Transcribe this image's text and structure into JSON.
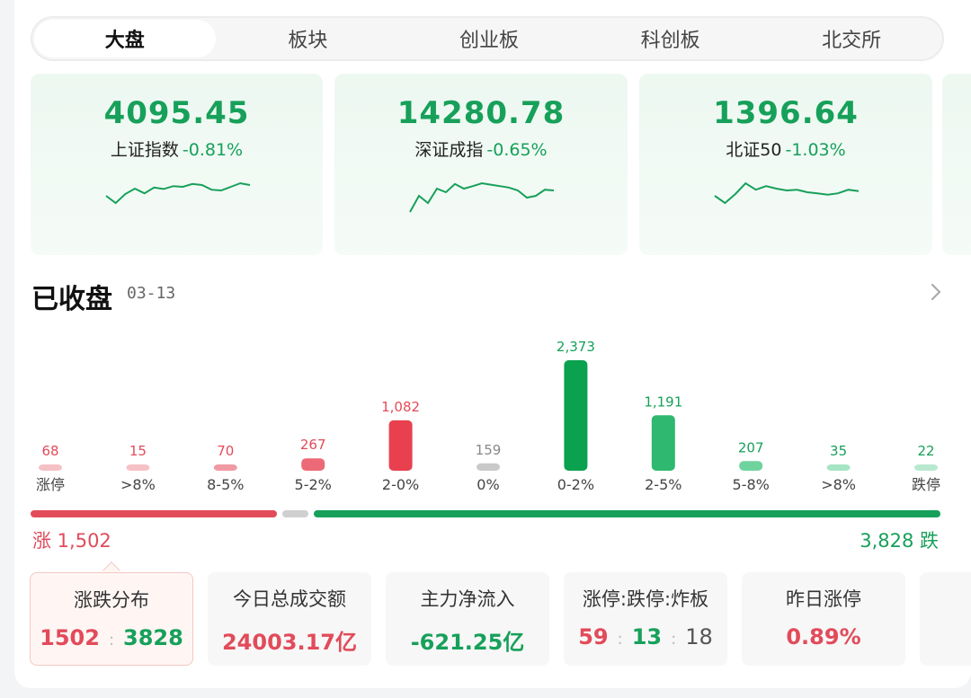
{
  "tabs": [
    "大盘",
    "板块",
    "创业板",
    "科创板",
    "北交所"
  ],
  "active_tab": 0,
  "indices": [
    {
      "value": "4095.45",
      "name": "上证指数",
      "pct": "-0.81%",
      "spark": [
        0.55,
        0.35,
        0.6,
        0.75,
        0.62,
        0.78,
        0.74,
        0.82,
        0.8,
        0.88,
        0.85,
        0.72,
        0.7,
        0.8,
        0.9,
        0.85
      ]
    },
    {
      "value": "14280.78",
      "name": "深证成指",
      "pct": "-0.65%",
      "spark": [
        0.1,
        0.55,
        0.35,
        0.75,
        0.65,
        0.88,
        0.75,
        0.82,
        0.9,
        0.86,
        0.82,
        0.78,
        0.7,
        0.5,
        0.55,
        0.72,
        0.7
      ]
    },
    {
      "value": "1396.64",
      "name": "北证50",
      "pct": "-1.03%",
      "spark": [
        0.55,
        0.35,
        0.6,
        0.9,
        0.72,
        0.82,
        0.75,
        0.7,
        0.72,
        0.65,
        0.62,
        0.58,
        0.62,
        0.72,
        0.68
      ]
    }
  ],
  "section": {
    "title": "已收盘",
    "date": "03-13"
  },
  "chart_data": {
    "type": "bar",
    "categories": [
      "涨停",
      ">8%",
      "8-5%",
      "5-2%",
      "2-0%",
      "0%",
      "0-2%",
      "2-5%",
      "5-8%",
      ">8%",
      "跌停"
    ],
    "values": [
      68,
      15,
      70,
      267,
      1082,
      159,
      2373,
      1191,
      207,
      35,
      22
    ],
    "value_labels": [
      "68",
      "15",
      "70",
      "267",
      "1,082",
      "159",
      "2,373",
      "1,191",
      "207",
      "35",
      "22"
    ],
    "colors": [
      "#f6c1c6",
      "#f6c1c6",
      "#f09aa3",
      "#ec6a77",
      "#e8404f",
      "#c9c9c9",
      "#0aa14f",
      "#2fb870",
      "#6fd39e",
      "#a6e4c4",
      "#b8e9cf"
    ],
    "label_colors": [
      "#e24b5a",
      "#e24b5a",
      "#e24b5a",
      "#e24b5a",
      "#e24b5a",
      "#888888",
      "#17a05a",
      "#17a05a",
      "#17a05a",
      "#17a05a",
      "#17a05a"
    ]
  },
  "split": {
    "up": 1502,
    "flat": 159,
    "down": 3828,
    "up_label": "涨 1,502",
    "down_label": "3,828 跌"
  },
  "stats": [
    {
      "title": "涨跌分布",
      "parts": [
        "1502",
        "3828"
      ]
    },
    {
      "title": "今日总成交额",
      "value": "24003.17亿"
    },
    {
      "title": "主力净流入",
      "value": "-621.25亿"
    },
    {
      "title": "涨停:跌停:炸板",
      "parts": [
        "59",
        "13",
        "18"
      ]
    },
    {
      "title": "昨日涨停",
      "value": "0.89%"
    }
  ],
  "colors": {
    "up": "#e24b5a",
    "down": "#17a05a",
    "flat": "#cfcfcf"
  }
}
